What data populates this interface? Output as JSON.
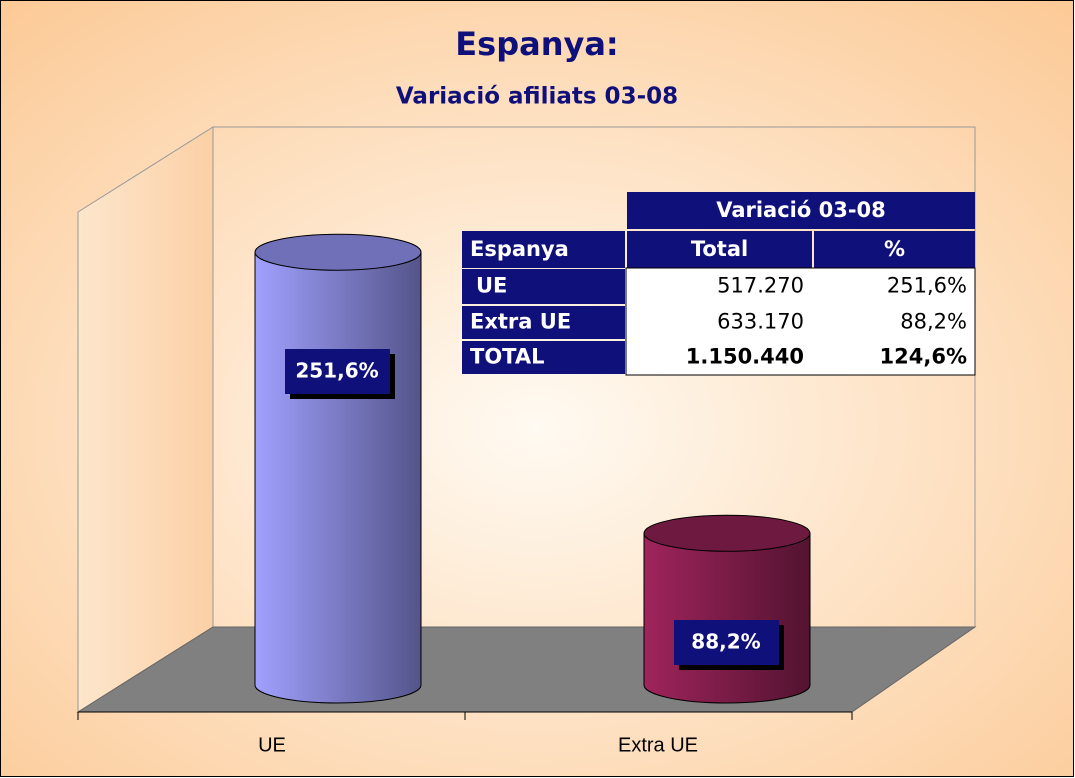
{
  "chart_data": {
    "type": "cylinder",
    "title": "Espanya:",
    "subtitle": "Variació afiliats 03-08",
    "categories": [
      "UE",
      "Extra UE"
    ],
    "values": [
      251.6,
      88.2
    ],
    "value_labels": [
      "251,6%",
      "88,2%"
    ],
    "colors": [
      "#8c8ce6",
      "#8a1f50"
    ],
    "table": {
      "title": "Variació 03-08",
      "columns": [
        "Espanya",
        "Total",
        "%"
      ],
      "rows": [
        [
          "UE",
          "517.270",
          "251,6%"
        ],
        [
          "Extra UE",
          "633.170",
          "88,2%"
        ],
        [
          "TOTAL",
          "1.150.440",
          "124,6%"
        ]
      ]
    }
  }
}
